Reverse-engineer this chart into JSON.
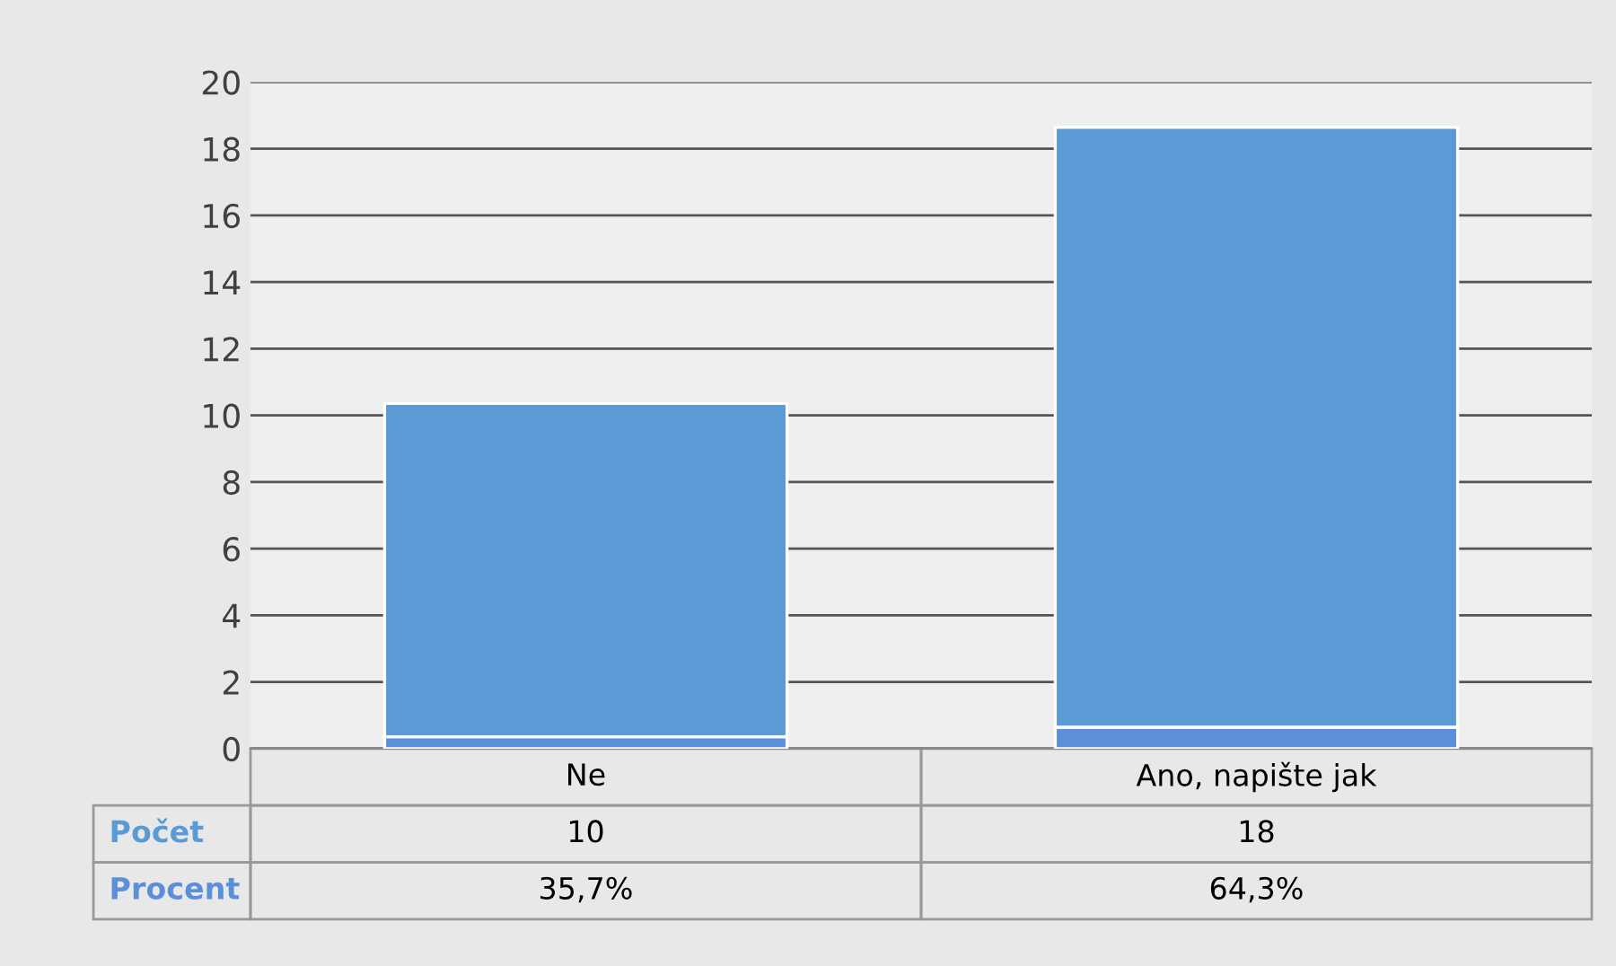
{
  "chart_data": {
    "type": "bar",
    "stacked": true,
    "categories": [
      "Ne",
      "Ano, napište jak"
    ],
    "series": [
      {
        "name": "Procent",
        "color": "#5b8fd9",
        "values": [
          0.357,
          0.643
        ],
        "value_labels": [
          "35,7%",
          "64,3%"
        ]
      },
      {
        "name": "Počet",
        "color": "#5b9bd5",
        "values": [
          10,
          18
        ],
        "value_labels": [
          "10",
          "18"
        ]
      }
    ],
    "ylim": [
      0,
      20
    ],
    "yticks": [
      0,
      2,
      4,
      6,
      8,
      10,
      12,
      14,
      16,
      18,
      20
    ],
    "grid": "y",
    "legend": false
  }
}
